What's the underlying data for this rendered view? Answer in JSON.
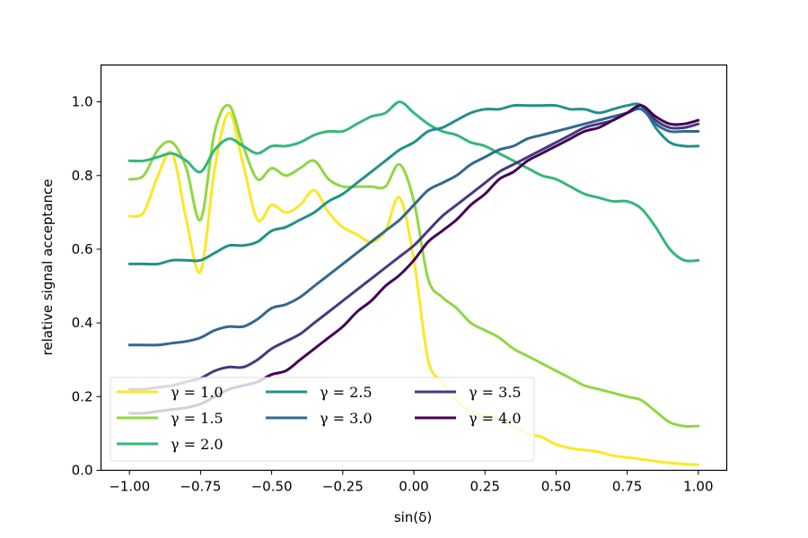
{
  "chart_data": {
    "type": "line",
    "title": "",
    "xlabel": "sin(δ)",
    "ylabel": "relative signal acceptance",
    "xlim": [
      -1.1,
      1.1
    ],
    "ylim": [
      0.0,
      1.1
    ],
    "xticks": [
      -1.0,
      -0.75,
      -0.5,
      -0.25,
      0.0,
      0.25,
      0.5,
      0.75,
      1.0
    ],
    "xtick_labels": [
      "−1.00",
      "−0.75",
      "−0.50",
      "−0.25",
      "0.00",
      "0.25",
      "0.50",
      "0.75",
      "1.00"
    ],
    "yticks": [
      0.0,
      0.2,
      0.4,
      0.6,
      0.8,
      1.0
    ],
    "ytick_labels": [
      "0.0",
      "0.2",
      "0.4",
      "0.6",
      "0.8",
      "1.0"
    ],
    "grid": false,
    "legend_position": "lower-left",
    "x": [
      -1.0,
      -0.95,
      -0.9,
      -0.85,
      -0.8,
      -0.75,
      -0.7,
      -0.65,
      -0.6,
      -0.55,
      -0.5,
      -0.45,
      -0.4,
      -0.35,
      -0.3,
      -0.25,
      -0.2,
      -0.15,
      -0.1,
      -0.05,
      0.0,
      0.05,
      0.1,
      0.15,
      0.2,
      0.25,
      0.3,
      0.35,
      0.4,
      0.45,
      0.5,
      0.55,
      0.6,
      0.65,
      0.7,
      0.75,
      0.8,
      0.85,
      0.9,
      0.95,
      1.0
    ],
    "series": [
      {
        "name": "γ = 1.0",
        "color": "#fde725",
        "values": [
          0.69,
          0.7,
          0.8,
          0.86,
          0.68,
          0.54,
          0.82,
          0.97,
          0.83,
          0.68,
          0.72,
          0.7,
          0.72,
          0.76,
          0.7,
          0.66,
          0.64,
          0.62,
          0.65,
          0.74,
          0.57,
          0.3,
          0.24,
          0.19,
          0.16,
          0.15,
          0.14,
          0.12,
          0.1,
          0.09,
          0.07,
          0.06,
          0.055,
          0.05,
          0.04,
          0.035,
          0.03,
          0.025,
          0.02,
          0.017,
          0.015
        ]
      },
      {
        "name": "γ = 1.5",
        "color": "#90d743",
        "values": [
          0.79,
          0.8,
          0.87,
          0.89,
          0.82,
          0.68,
          0.92,
          0.99,
          0.88,
          0.79,
          0.82,
          0.8,
          0.82,
          0.84,
          0.79,
          0.77,
          0.77,
          0.77,
          0.77,
          0.83,
          0.73,
          0.52,
          0.47,
          0.44,
          0.4,
          0.38,
          0.36,
          0.33,
          0.31,
          0.29,
          0.27,
          0.25,
          0.23,
          0.22,
          0.21,
          0.2,
          0.19,
          0.16,
          0.13,
          0.12,
          0.12
        ]
      },
      {
        "name": "γ = 2.0",
        "color": "#35b779",
        "values": [
          0.84,
          0.84,
          0.85,
          0.86,
          0.84,
          0.81,
          0.87,
          0.9,
          0.88,
          0.86,
          0.88,
          0.88,
          0.89,
          0.91,
          0.92,
          0.92,
          0.94,
          0.96,
          0.97,
          1.0,
          0.97,
          0.94,
          0.92,
          0.91,
          0.89,
          0.88,
          0.86,
          0.84,
          0.82,
          0.8,
          0.79,
          0.77,
          0.75,
          0.74,
          0.73,
          0.73,
          0.71,
          0.66,
          0.6,
          0.57,
          0.57
        ]
      },
      {
        "name": "γ = 2.5",
        "color": "#21918c",
        "values": [
          0.56,
          0.56,
          0.56,
          0.57,
          0.57,
          0.57,
          0.59,
          0.61,
          0.61,
          0.62,
          0.65,
          0.66,
          0.68,
          0.7,
          0.73,
          0.75,
          0.78,
          0.81,
          0.84,
          0.87,
          0.89,
          0.92,
          0.93,
          0.95,
          0.97,
          0.98,
          0.98,
          0.99,
          0.99,
          0.99,
          0.99,
          0.98,
          0.98,
          0.97,
          0.98,
          0.99,
          0.99,
          0.93,
          0.89,
          0.88,
          0.88
        ]
      },
      {
        "name": "γ = 3.0",
        "color": "#31688e",
        "values": [
          0.34,
          0.34,
          0.34,
          0.345,
          0.35,
          0.36,
          0.38,
          0.39,
          0.39,
          0.41,
          0.44,
          0.45,
          0.47,
          0.5,
          0.53,
          0.56,
          0.59,
          0.62,
          0.65,
          0.68,
          0.72,
          0.76,
          0.78,
          0.8,
          0.83,
          0.85,
          0.87,
          0.88,
          0.9,
          0.91,
          0.92,
          0.93,
          0.94,
          0.95,
          0.96,
          0.97,
          0.98,
          0.94,
          0.92,
          0.92,
          0.92
        ]
      },
      {
        "name": "γ = 3.5",
        "color": "#443983",
        "values": [
          0.22,
          0.22,
          0.225,
          0.23,
          0.24,
          0.25,
          0.27,
          0.28,
          0.28,
          0.3,
          0.33,
          0.35,
          0.37,
          0.4,
          0.43,
          0.46,
          0.49,
          0.52,
          0.55,
          0.58,
          0.61,
          0.65,
          0.69,
          0.72,
          0.75,
          0.78,
          0.81,
          0.83,
          0.85,
          0.87,
          0.89,
          0.91,
          0.93,
          0.94,
          0.95,
          0.97,
          0.99,
          0.95,
          0.93,
          0.93,
          0.94
        ]
      },
      {
        "name": "γ = 4.0",
        "color": "#440154",
        "values": [
          0.155,
          0.155,
          0.16,
          0.165,
          0.17,
          0.18,
          0.2,
          0.22,
          0.23,
          0.24,
          0.26,
          0.27,
          0.3,
          0.33,
          0.36,
          0.39,
          0.43,
          0.46,
          0.5,
          0.53,
          0.57,
          0.62,
          0.65,
          0.68,
          0.72,
          0.75,
          0.79,
          0.81,
          0.84,
          0.86,
          0.88,
          0.9,
          0.92,
          0.93,
          0.95,
          0.97,
          0.99,
          0.96,
          0.94,
          0.94,
          0.95
        ]
      }
    ]
  }
}
